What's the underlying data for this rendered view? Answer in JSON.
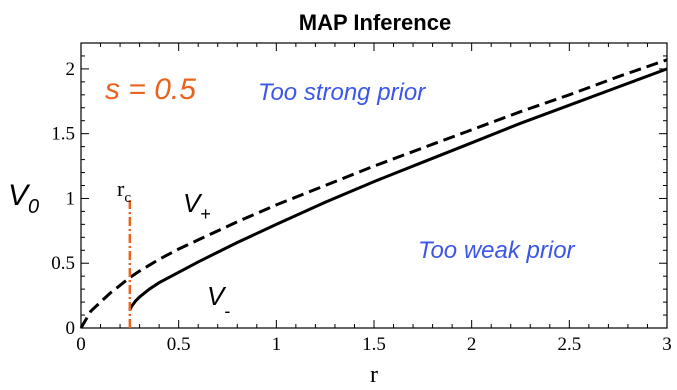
{
  "chart_data": {
    "type": "line",
    "title": "MAP Inference",
    "xlabel": "r",
    "ylabel": "V",
    "ylabel_sub": "0",
    "xlim": [
      0,
      3
    ],
    "ylim": [
      0,
      2.2
    ],
    "x_ticks": [
      0,
      0.5,
      1,
      1.5,
      2,
      2.5,
      3
    ],
    "x_tick_labels": [
      "0",
      "0.5",
      "1",
      "1.5",
      "2",
      "2.5",
      "3"
    ],
    "y_ticks": [
      0,
      0.5,
      1,
      1.5,
      2
    ],
    "y_tick_labels": [
      "0",
      "0.5",
      "1",
      "1.5",
      "2"
    ],
    "series": [
      {
        "name": "V+",
        "label_main": "V",
        "label_sub": "+",
        "style": "dashed",
        "color": "#000000",
        "x": [
          0,
          0.05,
          0.1,
          0.15,
          0.2,
          0.25,
          0.3,
          0.4,
          0.5,
          0.6,
          0.8,
          1.0,
          1.25,
          1.5,
          1.75,
          2.0,
          2.25,
          2.5,
          2.75,
          3.0
        ],
        "y": [
          0,
          0.13,
          0.2,
          0.27,
          0.33,
          0.39,
          0.44,
          0.53,
          0.61,
          0.68,
          0.82,
          0.95,
          1.1,
          1.25,
          1.39,
          1.53,
          1.67,
          1.8,
          1.94,
          2.07
        ]
      },
      {
        "name": "V-",
        "label_main": "V",
        "label_sub": "-",
        "style": "solid",
        "color": "#000000",
        "x": [
          0.25,
          0.26,
          0.28,
          0.3,
          0.35,
          0.4,
          0.5,
          0.6,
          0.8,
          1.0,
          1.25,
          1.5,
          1.75,
          2.0,
          2.25,
          2.5,
          2.75,
          3.0
        ],
        "y": [
          0.14,
          0.17,
          0.21,
          0.24,
          0.3,
          0.35,
          0.43,
          0.51,
          0.66,
          0.8,
          0.97,
          1.13,
          1.28,
          1.43,
          1.58,
          1.72,
          1.86,
          2.0
        ]
      }
    ],
    "rc": {
      "label": "r",
      "label_sub": "c",
      "x": 0.25,
      "y_from": 0,
      "y_to": 1.0,
      "color": "#e8641e"
    },
    "annotations": {
      "s_value": "s = 0.5",
      "too_strong": "Too strong prior",
      "too_weak": "Too weak prior"
    }
  },
  "colors": {
    "annotation_blue": "#3b56e8",
    "annotation_orange": "#e8641e"
  }
}
